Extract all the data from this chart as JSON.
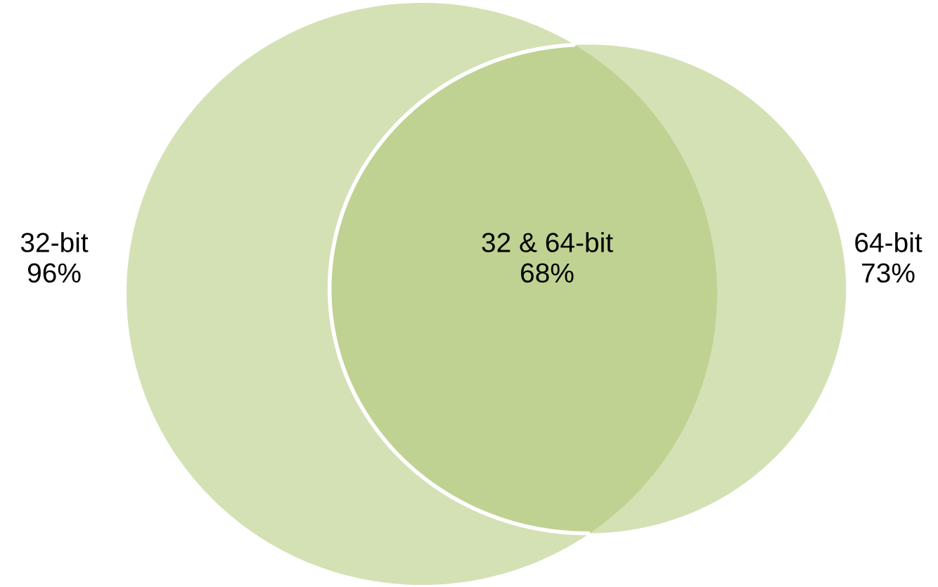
{
  "chart_data": {
    "type": "other",
    "categories": [
      "32-bit",
      "64-bit",
      "32 & 64-bit"
    ],
    "values": [
      96,
      73,
      68
    ],
    "value_labels": [
      "96%",
      "73%",
      "68%"
    ],
    "colors": [
      "#d4e1b5",
      "#d4e1b5",
      "#bfd292"
    ]
  }
}
